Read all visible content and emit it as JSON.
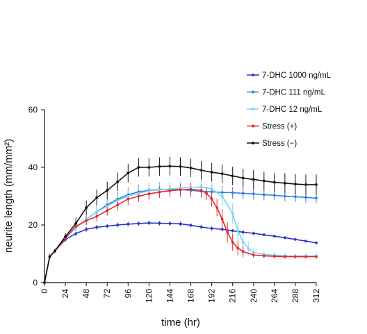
{
  "chart_data": {
    "type": "line",
    "title": "",
    "xlabel": "time (hr)",
    "ylabel": "neurite length (mm/mm²)",
    "xlim": [
      0,
      312
    ],
    "ylim": [
      0,
      60
    ],
    "x_ticks": [
      "0",
      "24",
      "48",
      "72",
      "96",
      "120",
      "144",
      "168",
      "192",
      "216",
      "240",
      "264",
      "288",
      "312"
    ],
    "y_ticks": [
      "0",
      "20",
      "40",
      "60"
    ],
    "grid": false,
    "legend_position": "top-right",
    "series": [
      {
        "name": "7-DHC  1000 ng/mL",
        "color": "#2b35c4",
        "x": [
          0,
          6,
          12,
          24,
          36,
          48,
          60,
          72,
          84,
          96,
          108,
          120,
          132,
          144,
          156,
          168,
          180,
          192,
          204,
          216,
          228,
          240,
          252,
          264,
          276,
          288,
          300,
          312
        ],
        "y": [
          0,
          9,
          11,
          15,
          17,
          18.5,
          19.2,
          19.6,
          20,
          20.3,
          20.5,
          20.7,
          20.6,
          20.5,
          20.4,
          19.9,
          19.3,
          18.8,
          18.5,
          18,
          17.5,
          17.1,
          16.6,
          16.1,
          15.6,
          15,
          14.4,
          13.8
        ],
        "err": [
          0,
          0.5,
          0.5,
          0.8,
          0.8,
          0.8,
          0.8,
          0.8,
          0.8,
          0.8,
          0.8,
          0.8,
          0.8,
          0.8,
          0.8,
          0.7,
          0.7,
          0.7,
          0.6,
          0.6,
          0.6,
          0.6,
          0.5,
          0.5,
          0.5,
          0.5,
          0.5,
          0.5
        ]
      },
      {
        "name": "7-DHC  111 ng/mL",
        "color": "#2f7fe0",
        "x": [
          0,
          6,
          12,
          24,
          36,
          48,
          60,
          72,
          84,
          96,
          108,
          120,
          132,
          144,
          156,
          168,
          180,
          192,
          204,
          216,
          228,
          240,
          252,
          264,
          276,
          288,
          300,
          312
        ],
        "y": [
          0,
          9,
          11,
          15.5,
          19,
          22,
          24.5,
          27,
          29,
          30.5,
          31.5,
          32,
          32.3,
          32.3,
          32.3,
          32,
          31.7,
          31.5,
          31.3,
          31.2,
          31,
          30.8,
          30.5,
          30.3,
          30,
          29.8,
          29.6,
          29.3
        ],
        "err": [
          0,
          0.5,
          0.5,
          1,
          1.5,
          2,
          2,
          2.3,
          2.5,
          2.5,
          2.5,
          2.5,
          2.5,
          2.5,
          2.5,
          2.3,
          2.3,
          2.2,
          2.2,
          2,
          2,
          2,
          2,
          1.8,
          1.8,
          1.8,
          1.8,
          1.8
        ]
      },
      {
        "name": "7-DHC  12 ng/mL",
        "color": "#79d4f2",
        "x": [
          0,
          6,
          12,
          24,
          36,
          48,
          60,
          72,
          84,
          96,
          108,
          120,
          132,
          144,
          156,
          168,
          180,
          192,
          204,
          216,
          222,
          228,
          234,
          240,
          252,
          264,
          276,
          288,
          300,
          312
        ],
        "y": [
          0,
          9,
          11,
          15.5,
          19,
          22,
          24.5,
          26.5,
          28.5,
          30,
          31,
          31.8,
          32.2,
          32.5,
          32.8,
          33,
          33.2,
          32.5,
          30,
          24,
          18,
          14,
          11.8,
          10.5,
          9.8,
          9.5,
          9.3,
          9.2,
          9.2,
          9.2
        ],
        "err": [
          0,
          0.5,
          0.5,
          1,
          1.5,
          2,
          2,
          2.2,
          2.4,
          2.4,
          2.4,
          2.4,
          2.4,
          2.4,
          2.4,
          2.4,
          2.4,
          2.6,
          3,
          3.5,
          3.5,
          3,
          2.5,
          1.5,
          1,
          1,
          1,
          1,
          1,
          1
        ]
      },
      {
        "name": "Stress (+)",
        "color": "#e8262b",
        "x": [
          0,
          6,
          12,
          24,
          36,
          48,
          60,
          72,
          84,
          96,
          108,
          120,
          132,
          144,
          156,
          168,
          180,
          186,
          192,
          198,
          204,
          210,
          216,
          222,
          228,
          240,
          252,
          264,
          276,
          288,
          300,
          312
        ],
        "y": [
          0,
          9,
          11,
          15.5,
          19.5,
          21.5,
          23,
          25,
          27,
          29,
          30,
          30.8,
          31.4,
          31.9,
          32.2,
          32.4,
          32,
          31,
          29,
          26,
          22,
          17.5,
          14,
          12,
          10.8,
          9.6,
          9.3,
          9.1,
          9,
          9,
          9,
          9
        ],
        "err": [
          0,
          0.5,
          0.5,
          0.8,
          1,
          1.5,
          1.8,
          1.8,
          2,
          2,
          2,
          2,
          2,
          2,
          2,
          2,
          2,
          2.3,
          2.6,
          3,
          3.5,
          3.5,
          3,
          2.5,
          2,
          1,
          0.8,
          0.6,
          0.6,
          0.6,
          0.6,
          0.6
        ]
      },
      {
        "name": "Stress (−)",
        "color": "#111111",
        "x": [
          0,
          6,
          12,
          24,
          36,
          48,
          60,
          72,
          84,
          96,
          108,
          120,
          132,
          144,
          156,
          168,
          180,
          192,
          204,
          216,
          228,
          240,
          252,
          264,
          276,
          288,
          300,
          312
        ],
        "y": [
          0,
          9,
          11,
          16,
          20.5,
          26,
          29.5,
          32,
          35,
          38,
          40,
          40,
          40.3,
          40.4,
          40.3,
          39.8,
          39,
          38.3,
          37.8,
          37,
          36.3,
          35.8,
          35.3,
          34.8,
          34.5,
          34.2,
          34,
          34
        ],
        "err": [
          0,
          0.8,
          0.8,
          1.2,
          2,
          2.5,
          2.8,
          3,
          3.2,
          3.2,
          3.2,
          3.2,
          3.2,
          3.2,
          3.2,
          3.2,
          3.2,
          3.2,
          3.2,
          3.2,
          3.2,
          3.2,
          3.2,
          3.2,
          3.5,
          3.5,
          3.5,
          3.5
        ]
      }
    ]
  }
}
